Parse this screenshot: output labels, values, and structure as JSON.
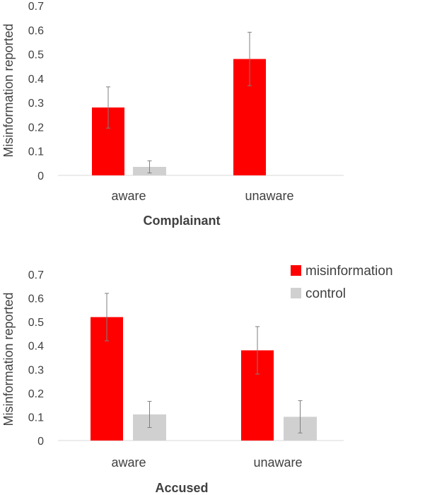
{
  "colors": {
    "misinformation": "#ff0000",
    "control": "#d0d0d0",
    "axis": "#d9d9d9",
    "error_bar": "#7f7f7f"
  },
  "legend": {
    "placement": "top-right of lower chart",
    "items": [
      "misinformation",
      "control"
    ]
  },
  "chart_data": [
    {
      "type": "bar",
      "title": "Complainant",
      "ylabel": "Misinformation reported",
      "xlabel": "",
      "categories": [
        "aware",
        "unaware"
      ],
      "ylim": [
        0,
        0.7
      ],
      "yticks": [
        "0",
        "0.1",
        "0.2",
        "0.3",
        "0.4",
        "0.5",
        "0.6",
        "0.7"
      ],
      "grid": false,
      "series": [
        {
          "name": "misinformation",
          "values": [
            0.28,
            0.48
          ],
          "errors": [
            0.085,
            0.11
          ]
        },
        {
          "name": "control",
          "values": [
            0.035,
            null
          ],
          "errors": [
            0.025,
            null
          ]
        }
      ]
    },
    {
      "type": "bar",
      "title": "Accused",
      "ylabel": "Misinformation reported",
      "xlabel": "",
      "categories": [
        "aware",
        "unaware"
      ],
      "ylim": [
        0,
        0.7
      ],
      "yticks": [
        "0",
        "0.1",
        "0.2",
        "0.3",
        "0.4",
        "0.5",
        "0.6",
        "0.7"
      ],
      "grid": false,
      "series": [
        {
          "name": "misinformation",
          "values": [
            0.52,
            0.38
          ],
          "errors": [
            0.1,
            0.1
          ]
        },
        {
          "name": "control",
          "values": [
            0.11,
            0.1
          ],
          "errors": [
            0.055,
            0.068
          ]
        }
      ]
    }
  ]
}
